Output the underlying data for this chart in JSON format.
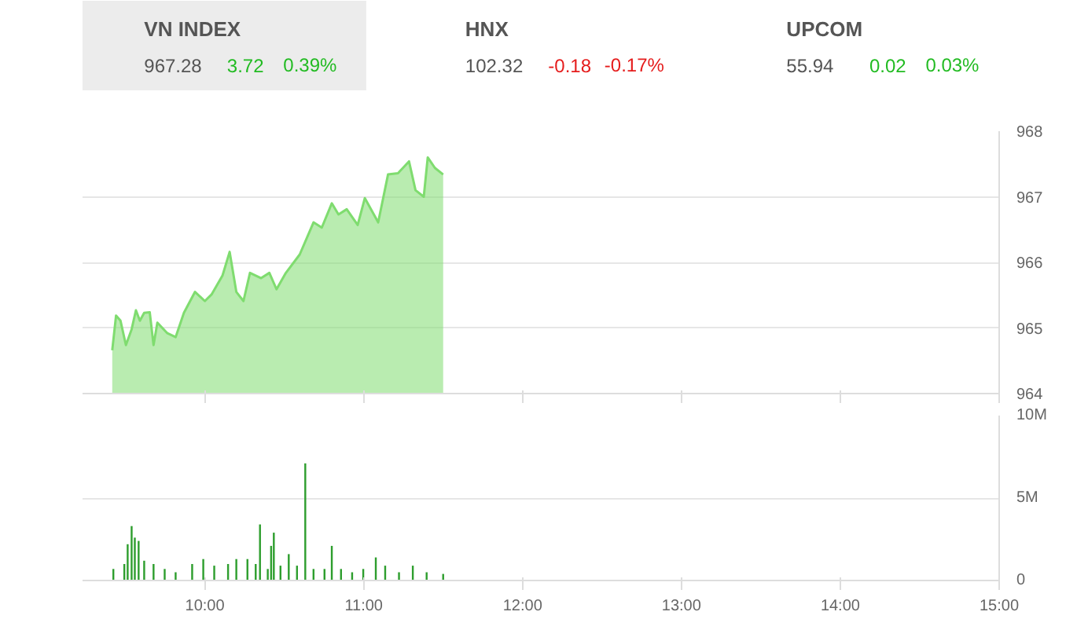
{
  "chart_data": [
    {
      "type": "other",
      "annotations": [
        "VN INDEX",
        "967.28",
        "3.72",
        "0.39%",
        "HNX",
        "102.32",
        "-0.18",
        "-0.17%",
        "UPCOM",
        "55.94",
        "0.02",
        "0.03%"
      ],
      "colors": [
        "#22bb22",
        "#e51c1c",
        "#22bb22"
      ]
    },
    {
      "type": "area",
      "x": [
        9.417,
        9.441,
        9.469,
        9.503,
        9.539,
        9.566,
        9.591,
        9.618,
        9.653,
        9.677,
        9.701,
        9.764,
        9.816,
        9.868,
        9.938,
        10.0,
        10.042,
        10.111,
        10.156,
        10.198,
        10.243,
        10.284,
        10.354,
        10.406,
        10.451,
        10.51,
        10.597,
        10.684,
        10.736,
        10.799,
        10.841,
        10.893,
        10.962,
        11.007,
        11.091,
        11.153,
        11.216,
        11.285,
        11.326,
        11.378,
        11.403,
        11.448,
        11.5
      ],
      "values": [
        964.66,
        965.19,
        965.11,
        964.74,
        964.98,
        965.27,
        965.11,
        965.23,
        965.24,
        964.74,
        965.08,
        964.92,
        964.86,
        965.23,
        965.55,
        965.41,
        965.51,
        965.8,
        966.16,
        965.55,
        965.41,
        965.84,
        965.76,
        965.84,
        965.59,
        965.84,
        966.12,
        966.61,
        966.53,
        966.9,
        966.73,
        966.81,
        966.57,
        966.98,
        966.61,
        967.34,
        967.36,
        967.54,
        967.1,
        967.0,
        967.6,
        967.44,
        967.34
      ],
      "color": "#7fdc6f",
      "xlim": [
        9.23,
        15
      ],
      "ylim": [
        964,
        968
      ],
      "yticks": [
        964,
        965,
        966,
        967,
        968
      ],
      "xticks": [
        {
          "value": 10,
          "label": null
        },
        {
          "value": 11,
          "label": null
        },
        {
          "value": 12,
          "label": null
        },
        {
          "value": 13,
          "label": null
        },
        {
          "value": 14,
          "label": null
        },
        {
          "value": 15,
          "label": null
        }
      ],
      "tick_labels": "y",
      "grid": "y"
    },
    {
      "type": "bar",
      "x": [
        9.424,
        9.493,
        9.514,
        9.539,
        9.559,
        9.583,
        9.618,
        9.677,
        9.747,
        9.816,
        9.92,
        9.99,
        10.059,
        10.146,
        10.198,
        10.268,
        10.32,
        10.347,
        10.396,
        10.417,
        10.434,
        10.476,
        10.528,
        10.58,
        10.632,
        10.684,
        10.753,
        10.799,
        10.857,
        10.927,
        10.997,
        11.076,
        11.135,
        11.222,
        11.309,
        11.396,
        11.5
      ],
      "values": [
        0.7,
        1.0,
        2.2,
        3.3,
        2.6,
        2.4,
        1.2,
        1.0,
        0.7,
        0.5,
        1.0,
        1.3,
        0.9,
        1.0,
        1.3,
        1.3,
        1.0,
        3.4,
        0.7,
        2.1,
        2.9,
        0.9,
        1.6,
        0.9,
        7.1,
        0.7,
        0.7,
        2.1,
        0.7,
        0.5,
        0.7,
        1.4,
        0.9,
        0.5,
        0.9,
        0.5,
        0.4
      ],
      "color": "#2e9e2e",
      "xlim": [
        9.23,
        15
      ],
      "ylim": [
        0,
        10
      ],
      "yticks": [
        0,
        {
          "value": 5,
          "label": "5M"
        },
        {
          "value": 10,
          "label": "10M"
        }
      ],
      "xticks": [
        {
          "value": 10,
          "label": "10:00"
        },
        {
          "value": 11,
          "label": "11:00"
        },
        {
          "value": 12,
          "label": "12:00"
        },
        {
          "value": 13,
          "label": "13:00"
        },
        {
          "value": 14,
          "label": "14:00"
        },
        {
          "value": 15,
          "label": "15:00"
        }
      ],
      "grid": "y"
    }
  ]
}
